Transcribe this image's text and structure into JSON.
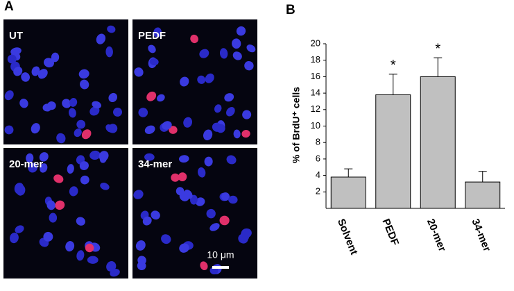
{
  "panel_labels": [
    "A",
    "B"
  ],
  "images": [
    {
      "label": "UT"
    },
    {
      "label": "PEDF"
    },
    {
      "label": "20-mer"
    },
    {
      "label": "34-mer"
    }
  ],
  "scale_bar": "10 μm",
  "chart_data": {
    "type": "bar",
    "y_label": "% of BrdU⁺ cells",
    "categories": [
      "Solvent",
      "PEDF",
      "20-mer",
      "34-mer"
    ],
    "values": [
      3.8,
      13.8,
      16.0,
      3.2
    ],
    "errors": [
      1.0,
      2.5,
      2.3,
      1.3
    ],
    "annotations": [
      null,
      "*",
      "*",
      null
    ],
    "color": "#c0c0c0",
    "ylim": [
      0,
      20
    ],
    "yticks": [
      2,
      4,
      6,
      8,
      10,
      12,
      14,
      16,
      18,
      20
    ]
  }
}
